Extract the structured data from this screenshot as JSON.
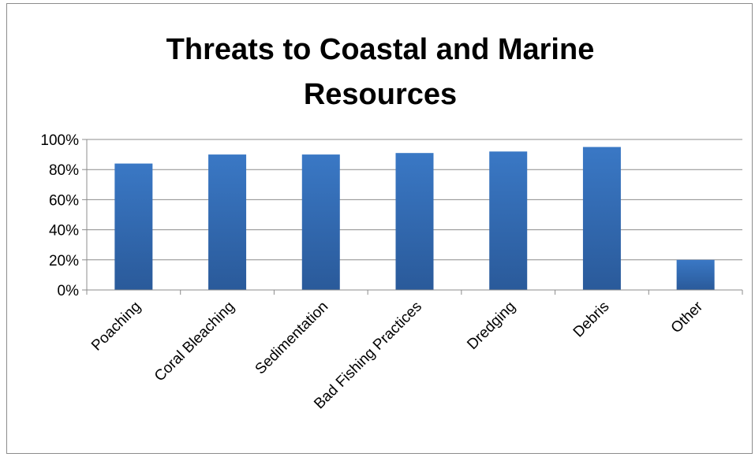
{
  "chart_data": {
    "type": "bar",
    "title": "Threats to Coastal and Marine Resources",
    "categories": [
      "Poaching",
      "Coral Bleaching",
      "Sedimentation",
      "Bad Fishing Practices",
      "Dredging",
      "Debris",
      "Other"
    ],
    "values": [
      84,
      90,
      90,
      91,
      92,
      95,
      20
    ],
    "y_ticks": [
      "0%",
      "20%",
      "40%",
      "60%",
      "80%",
      "100%"
    ],
    "ylim": [
      0,
      100
    ],
    "xlabel": "",
    "ylabel": "",
    "grid": true,
    "legend": "none",
    "bar_color": "#3a78c5",
    "bar_color_dark": "#2a5a9a"
  }
}
